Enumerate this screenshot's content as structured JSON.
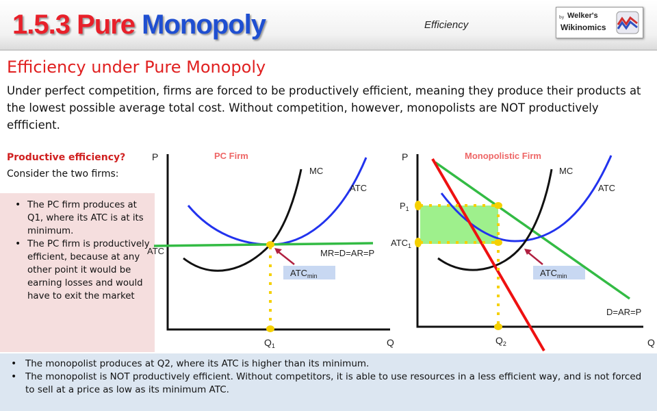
{
  "header": {
    "title_number": "1.5.3",
    "title_word1": "Pure",
    "title_word2": "Monopoly",
    "topic": "Efficiency",
    "logo": {
      "by": "by",
      "line1": "Welker's",
      "line2": "Wikinomics"
    }
  },
  "heading": "Efficiency under Pure Monopoly",
  "intro": "Under perfect competition, firms are forced to be productively efficient, meaning they produce their products at the lowest possible average total cost. Without competition, however, monopolists are NOT productively effficient.",
  "question": "Productive efficiency?",
  "question_sub": "Consider the two firms:",
  "pc_notes": [
    "The PC firm produces at Q1, where its ATC is at its minimum.",
    "The PC firm is productively efficient, because at any other point it would be earning losses and would have to exit the market"
  ],
  "mono_notes": [
    "The monopolist produces at Q2, where its ATC is higher than its minimum.",
    "The monopolist is NOT productively efficient. Without competitors, it is able to use resources in a less efficient way, and is not forced to sell at a price as low as its minimum ATC."
  ],
  "pc_graph": {
    "title": "PC Firm",
    "y_axis": "P",
    "x_axis": "Q",
    "mc": "MC",
    "atc": "ATC",
    "demand": "MR=D=AR=P",
    "price_label": "ATC",
    "q_label": "Q",
    "q_sub": "1",
    "atcmin_label": "ATC",
    "atcmin_sub": "min"
  },
  "mono_graph": {
    "title": "Monopolistic Firm",
    "y_axis": "P",
    "x_axis": "Q",
    "mc": "MC",
    "atc": "ATC",
    "demand": "D=AR=P",
    "mr": "MR",
    "p1_label": "P",
    "p1_sub": "1",
    "atc1_label": "ATC",
    "atc1_sub": "1",
    "q_label": "Q",
    "q_sub": "2",
    "atcmin_label": "ATC",
    "atcmin_sub": "min"
  },
  "colors": {
    "title_red": "#e8202a",
    "title_blue": "#1f4fd1",
    "atc_curve": "#2233ee",
    "mc_curve": "#111111",
    "demand_line": "#33bb44",
    "mr_line": "#ee1111",
    "dotted_guides": "#f5d000",
    "inefficiency_area": "#9ef08c",
    "title_labels": "#ee6666",
    "pink_panel": "#f5dede",
    "blue_panel": "#dce6f1"
  }
}
